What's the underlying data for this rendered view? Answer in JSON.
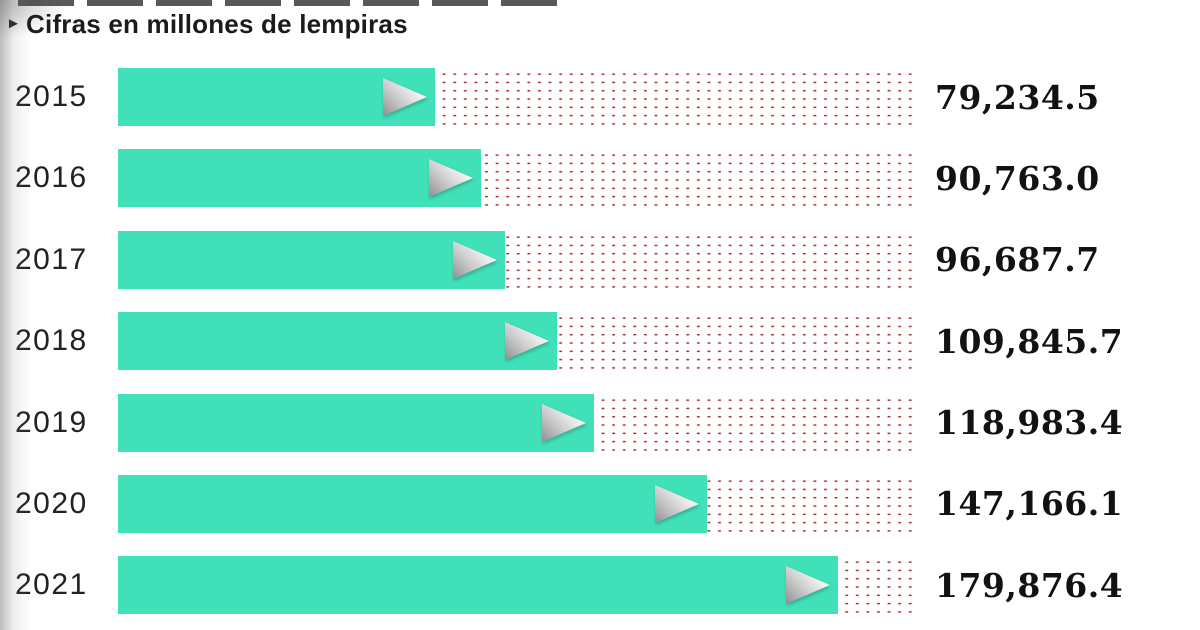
{
  "subtitle": {
    "marker": "►",
    "text": "Cifras en millones de lempiras"
  },
  "chart_data": {
    "type": "bar",
    "orientation": "horizontal",
    "title": "",
    "subtitle": "Cifras en millones de lempiras",
    "categories": [
      "2015",
      "2016",
      "2017",
      "2018",
      "2019",
      "2020",
      "2021"
    ],
    "values": [
      79234.5,
      90763.0,
      96687.7,
      109845.7,
      118983.4,
      147166.1,
      179876.4
    ],
    "value_labels": [
      "79,234.5",
      "90,763.0",
      "96,687.7",
      "109,845.7",
      "118,983.4",
      "147,166.1",
      "179,876.4"
    ],
    "xlabel": "",
    "ylabel": "",
    "xlim": [
      0,
      200000
    ],
    "grid": false,
    "legend": false,
    "units": "millones de lempiras"
  },
  "colors": {
    "bar": "#40e0b8",
    "dot": "#d04848",
    "dot_core": "#6d2020",
    "value_text": "#121212",
    "year_text": "#222222",
    "subtitle_text": "#1b1b1b"
  }
}
